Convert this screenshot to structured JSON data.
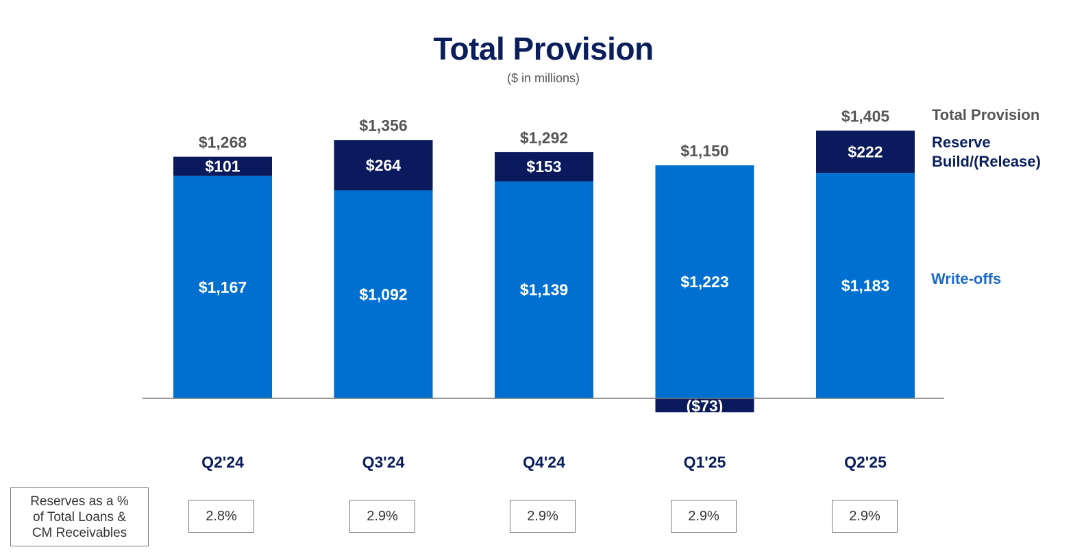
{
  "header": {
    "title": "Total Provision",
    "subtitle": "($ in millions)"
  },
  "legend": {
    "total_label": "Total Provision",
    "reserve_label_line1": "Reserve",
    "reserve_label_line2": "Build/(Release)",
    "writeoffs_label": "Write-offs"
  },
  "colors": {
    "writeoffs": "#0070d0",
    "reserve": "#0a1a5c",
    "axis": "#777777",
    "total_text": "#555555",
    "category_text": "#0a1e5c"
  },
  "chart_data": {
    "type": "bar",
    "stacked": true,
    "title": "Total Provision",
    "subtitle": "($ in millions)",
    "categories": [
      "Q2'24",
      "Q3'24",
      "Q4'24",
      "Q1'25",
      "Q2'25"
    ],
    "series": [
      {
        "name": "Write-offs",
        "values": [
          1167,
          1092,
          1139,
          1223,
          1183
        ],
        "labels": [
          "$1,167",
          "$1,092",
          "$1,139",
          "$1,223",
          "$1,183"
        ]
      },
      {
        "name": "Reserve Build/(Release)",
        "values": [
          101,
          264,
          153,
          -73,
          222
        ],
        "labels": [
          "$101",
          "$264",
          "$153",
          "($73)",
          "$222"
        ]
      }
    ],
    "totals": {
      "name": "Total Provision",
      "values": [
        1268,
        1356,
        1292,
        1150,
        1405
      ],
      "labels": [
        "$1,268",
        "$1,356",
        "$1,292",
        "$1,150",
        "$1,405"
      ]
    },
    "ylim": [
      -80,
      1420
    ],
    "grid": false,
    "legend_position": "right"
  },
  "reserves_table": {
    "label_line1": "Reserves as a %",
    "label_line2": "of Total Loans &",
    "label_line3": "CM Receivables",
    "values": [
      "2.8%",
      "2.9%",
      "2.9%",
      "2.9%",
      "2.9%"
    ]
  }
}
